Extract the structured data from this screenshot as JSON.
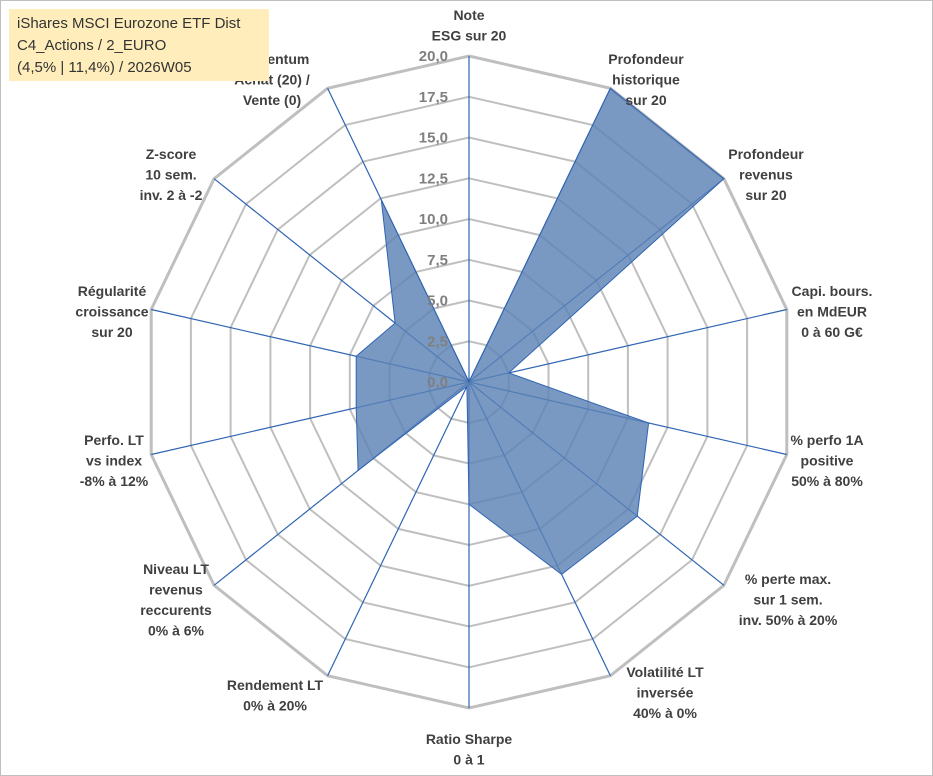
{
  "title_box": {
    "line1": "iShares MSCI Eurozone ETF Dist",
    "line2": "C4_Actions / 2_EURO",
    "line3": "(4,5% | 11,4%) / 2026W05"
  },
  "chart_data": {
    "type": "radar",
    "range": [
      0,
      20
    ],
    "ticks": [
      "0,0",
      "2,5",
      "5,0",
      "7,5",
      "10,0",
      "12,5",
      "15,0",
      "17,5",
      "20,0"
    ],
    "grid": true,
    "axes": [
      [
        "Note",
        "ESG sur 20"
      ],
      [
        "Profondeur",
        "historique",
        "sur 20"
      ],
      [
        "Profondeur",
        "revenus",
        "sur 20"
      ],
      [
        "Capi. bours.",
        "en MdEUR",
        "0 à 60 G€"
      ],
      [
        "% perfo 1A",
        "positive",
        "50% à 80%"
      ],
      [
        "% perte max.",
        "sur 1 sem.",
        "inv. 50% à 20%"
      ],
      [
        "Volatilité LT",
        "inversée",
        "40% à 0%"
      ],
      [
        "Ratio Sharpe",
        "0 à 1"
      ],
      [
        "Rendement LT",
        "0% à 20%"
      ],
      [
        "Niveau LT",
        "revenus",
        "reccurents",
        "0% à 6%"
      ],
      [
        "Perfo. LT",
        "vs index",
        "-8% à 12%"
      ],
      [
        "Régularité",
        "croissance",
        "sur 20"
      ],
      [
        "Z-score",
        "10 sem.",
        "inv. 2 à -2"
      ],
      [
        "Momentum",
        "Achat (20) /",
        "Vente (0)"
      ]
    ],
    "values": [
      0,
      20,
      20,
      2.5,
      11.3,
      13.2,
      13.1,
      7.5,
      0.3,
      8.7,
      7.1,
      7.1,
      5.8,
      12.4
    ],
    "series_color": "#5b82b6",
    "series_fill": "#5b82b6",
    "spoke_color": "#2f64b2",
    "grid_color": "#bfbfbf"
  }
}
